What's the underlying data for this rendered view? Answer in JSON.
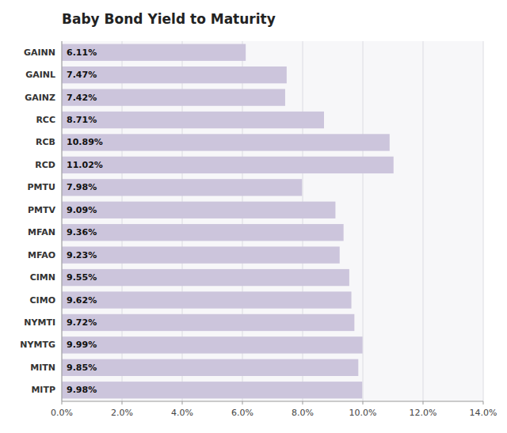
{
  "chart_data": {
    "type": "bar",
    "orientation": "horizontal",
    "title": "Baby Bond Yield to Maturity",
    "categories": [
      "GAINN",
      "GAINL",
      "GAINZ",
      "RCC",
      "RCB",
      "RCD",
      "PMTU",
      "PMTV",
      "MFAN",
      "MFAO",
      "CIMN",
      "CIMO",
      "NYMTI",
      "NYMTG",
      "MITN",
      "MITP"
    ],
    "values": [
      6.11,
      7.47,
      7.42,
      8.71,
      10.89,
      11.02,
      7.98,
      9.09,
      9.36,
      9.23,
      9.55,
      9.62,
      9.72,
      9.99,
      9.85,
      9.98
    ],
    "value_labels": [
      "6.11%",
      "7.47%",
      "7.42%",
      "8.71%",
      "10.89%",
      "11.02%",
      "7.98%",
      "9.09%",
      "9.36%",
      "9.23%",
      "9.55%",
      "9.62%",
      "9.72%",
      "9.99%",
      "9.85%",
      "9.98%"
    ],
    "data_labels": true,
    "color": "#ccc5dc",
    "xlim": [
      0,
      14
    ],
    "xticks": [
      {
        "value": 0,
        "label": "0.0%"
      },
      {
        "value": 2,
        "label": "2.0%"
      },
      {
        "value": 4,
        "label": "4.0%"
      },
      {
        "value": 6,
        "label": "6.0%"
      },
      {
        "value": 8,
        "label": "8.0%"
      },
      {
        "value": 10,
        "label": "10.0%"
      },
      {
        "value": 12,
        "label": "12.0%"
      },
      {
        "value": 14,
        "label": "14.0%"
      }
    ],
    "grid": true
  }
}
